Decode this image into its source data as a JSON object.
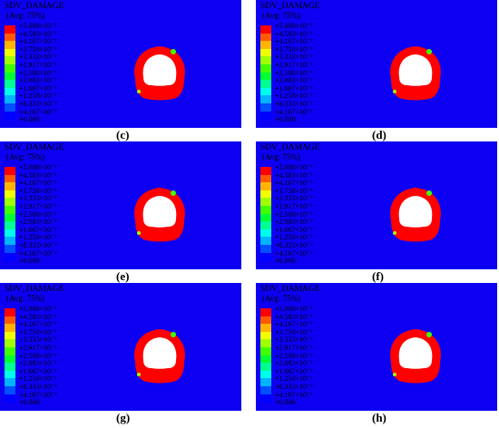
{
  "legend": {
    "title": "SDV_DAMAGE",
    "subtitle": "(Avg: 75%)",
    "colors": [
      "#ff0000",
      "#ff5a00",
      "#ffb400",
      "#f0ff00",
      "#a0ff00",
      "#40ff00",
      "#00ff30",
      "#00ff90",
      "#00ffe8",
      "#00b4ff",
      "#0050ff",
      "#0000ff"
    ],
    "labels": [
      "+5.000×10⁻¹",
      "+4.583×10⁻¹",
      "+4.167×10⁻¹",
      "+3.750×10⁻¹",
      "+3.333×10⁻¹",
      "+2.917×10⁻¹",
      "+2.500×10⁻¹",
      "+2.083×10⁻¹",
      "+1.667×10⁻¹",
      "+1.250×10⁻¹",
      "+8.333×10⁻²",
      "+4.167×10⁻²",
      "+0.000"
    ]
  },
  "colors": {
    "background": "#0d00f2",
    "damage": "#ff0000",
    "opening": "#ffffff"
  },
  "panels": [
    {
      "caption": "(c)"
    },
    {
      "caption": "(d)"
    },
    {
      "caption": "(e)"
    },
    {
      "caption": "(f)"
    },
    {
      "caption": "(g)"
    },
    {
      "caption": "(h)"
    }
  ]
}
